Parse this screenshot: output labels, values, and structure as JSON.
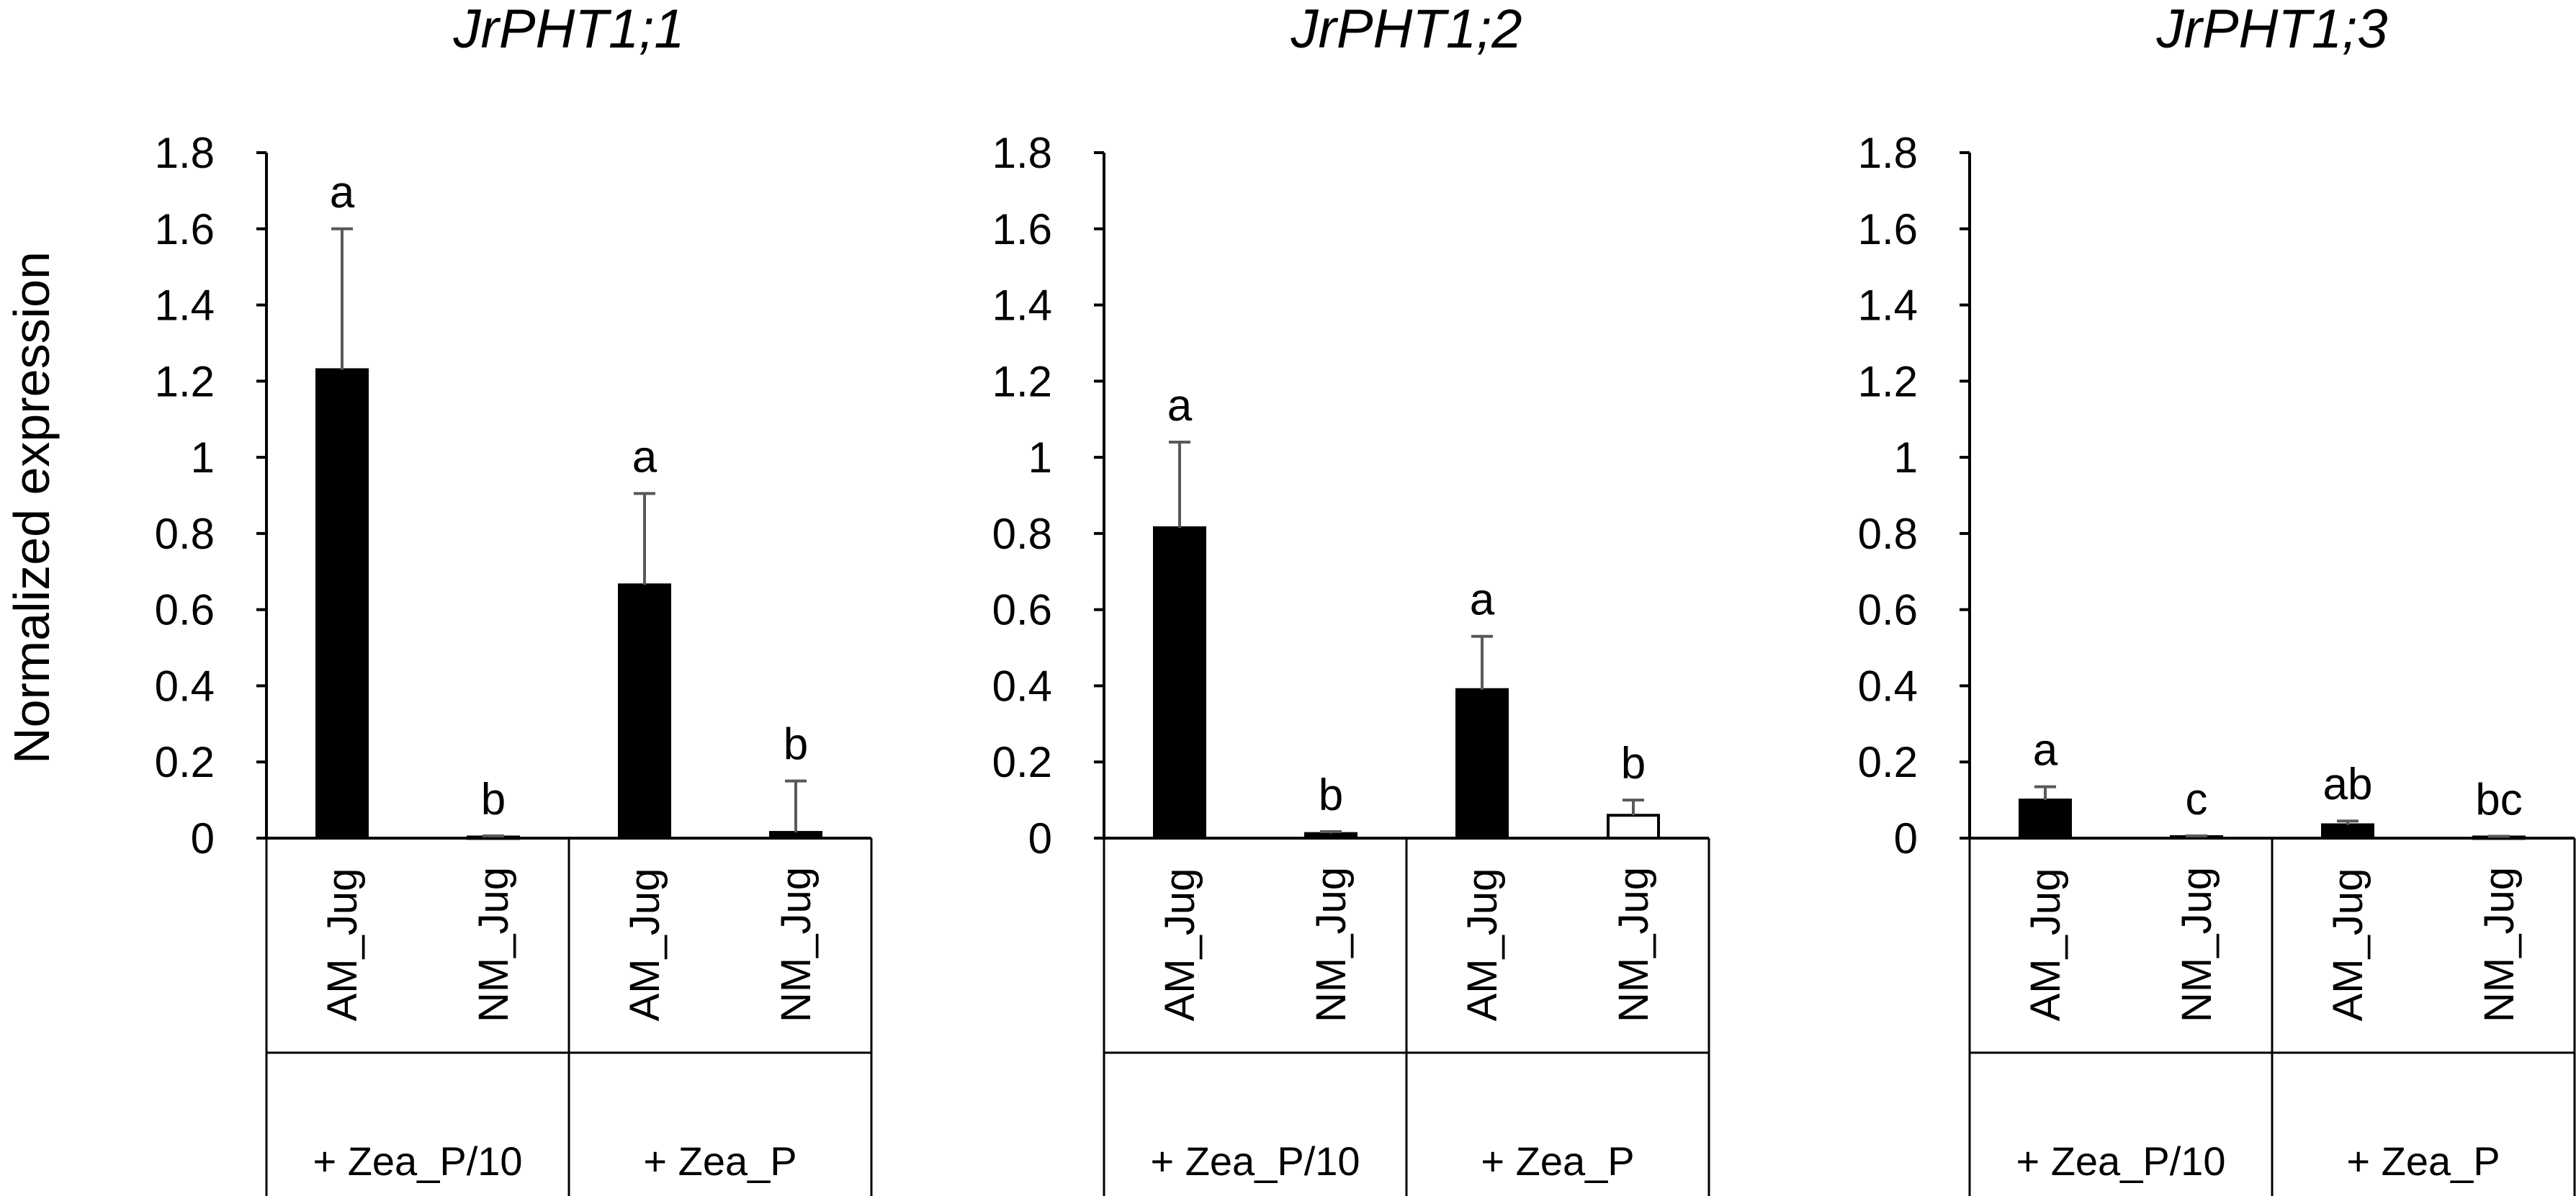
{
  "chart_data": [
    {
      "type": "bar",
      "title": "JrPHT1;1",
      "ylabel": "Normalized expression",
      "ylim": [
        0,
        1.8
      ],
      "yticks": [
        "0",
        "0.2",
        "0.4",
        "0.6",
        "0.8",
        "1",
        "1.2",
        "1.4",
        "1.6",
        "1.8"
      ],
      "groups": [
        "+ Zea_P/10",
        "+ Zea_P"
      ],
      "categories": [
        "AM_Jug",
        "NM_Jug",
        "AM_Jug",
        "NM_Jug"
      ],
      "values": [
        1.23,
        0.003,
        0.665,
        0.015
      ],
      "errors": [
        0.37,
        0.003,
        0.24,
        0.135
      ],
      "bar_colors": [
        "#000000",
        "#000000",
        "#000000",
        "#000000"
      ],
      "significance": [
        "a",
        "b",
        "a",
        "b"
      ]
    },
    {
      "type": "bar",
      "title": "JrPHT1;2",
      "ylabel": "",
      "ylim": [
        0,
        1.8
      ],
      "yticks": [
        "0",
        "0.2",
        "0.4",
        "0.6",
        "0.8",
        "1",
        "1.2",
        "1.4",
        "1.6",
        "1.8"
      ],
      "groups": [
        "+ Zea_P/10",
        "+ Zea_P"
      ],
      "categories": [
        "AM_Jug",
        "NM_Jug",
        "AM_Jug",
        "NM_Jug"
      ],
      "values": [
        0.815,
        0.012,
        0.39,
        0.06
      ],
      "errors": [
        0.225,
        0.005,
        0.14,
        0.04
      ],
      "bar_colors": [
        "#000000",
        "#000000",
        "#000000",
        "#ffffff"
      ],
      "significance": [
        "a",
        "b",
        "a",
        "b"
      ]
    },
    {
      "type": "bar",
      "title": "JrPHT1;3",
      "ylabel": "",
      "ylim": [
        0,
        1.8
      ],
      "yticks": [
        "0",
        "0.2",
        "0.4",
        "0.6",
        "0.8",
        "1",
        "1.2",
        "1.4",
        "1.6",
        "1.8"
      ],
      "groups": [
        "+ Zea_P/10",
        "+ Zea_P"
      ],
      "categories": [
        "AM_Jug",
        "NM_Jug",
        "AM_Jug",
        "NM_Jug"
      ],
      "values": [
        0.1,
        0.004,
        0.035,
        0.003
      ],
      "errors": [
        0.035,
        0.002,
        0.01,
        0.002
      ],
      "bar_colors": [
        "#000000",
        "#000000",
        "#000000",
        "#000000"
      ],
      "significance": [
        "a",
        "c",
        "ab",
        "bc"
      ]
    }
  ]
}
